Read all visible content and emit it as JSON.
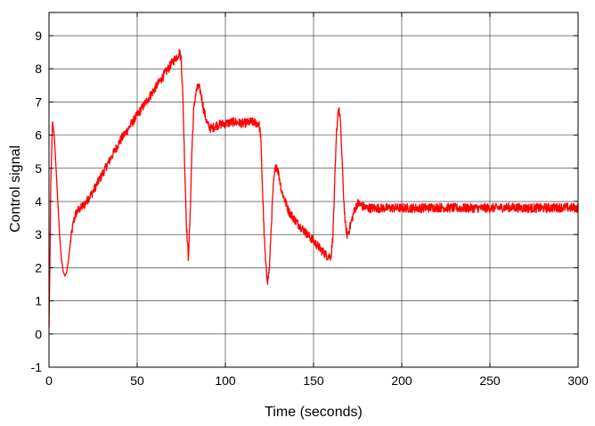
{
  "chart_data": {
    "type": "line",
    "title": "",
    "xlabel": "Time (seconds)",
    "ylabel": "Control signal",
    "xlim": [
      0,
      300
    ],
    "ylim": [
      -1,
      9.7
    ],
    "xticks": [
      0,
      50,
      100,
      150,
      200,
      250,
      300
    ],
    "yticks": [
      -1,
      0,
      1,
      2,
      3,
      4,
      5,
      6,
      7,
      8,
      9
    ],
    "xtick_labels": [
      "0",
      "50",
      "100",
      "150",
      "200",
      "250",
      "300"
    ],
    "ytick_labels": [
      "-1",
      "0",
      "1",
      "2",
      "3",
      "4",
      "5",
      "6",
      "7",
      "8",
      "9"
    ],
    "grid": true,
    "series": [
      {
        "color": "#ff0000",
        "x": [
          0,
          0.5,
          1,
          2,
          3,
          4,
          5,
          6,
          7,
          8,
          9,
          10,
          11,
          12,
          13,
          14,
          15,
          16,
          18,
          20,
          25,
          30,
          35,
          40,
          45,
          50,
          55,
          60,
          65,
          70,
          73,
          74,
          75,
          76,
          77,
          78,
          79,
          80,
          81,
          82,
          83,
          84,
          85,
          86,
          87,
          88,
          89,
          90,
          92,
          95,
          100,
          105,
          110,
          115,
          119,
          120,
          121,
          122,
          123,
          124,
          125,
          126,
          127,
          128,
          129,
          130,
          131,
          132,
          134,
          136,
          140,
          145,
          150,
          155,
          158,
          160,
          161,
          162,
          163,
          164,
          165,
          166,
          167,
          168,
          169,
          170,
          171,
          172,
          173,
          175,
          178,
          180,
          190,
          200,
          210,
          220,
          230,
          240,
          250,
          260,
          270,
          280,
          290,
          300
        ],
        "y": [
          0.2,
          2.0,
          4.5,
          6.4,
          6.0,
          5.0,
          4.0,
          3.0,
          2.3,
          1.9,
          1.75,
          1.85,
          2.2,
          2.7,
          3.1,
          3.4,
          3.6,
          3.7,
          3.8,
          3.9,
          4.3,
          4.8,
          5.3,
          5.8,
          6.2,
          6.6,
          7.0,
          7.4,
          7.8,
          8.2,
          8.4,
          8.5,
          8.3,
          7.0,
          5.0,
          3.2,
          2.3,
          3.5,
          5.5,
          6.7,
          7.2,
          7.4,
          7.45,
          7.3,
          7.0,
          6.7,
          6.5,
          6.3,
          6.2,
          6.3,
          6.35,
          6.4,
          6.35,
          6.4,
          6.35,
          6.0,
          4.5,
          3.0,
          2.0,
          1.6,
          2.0,
          3.2,
          4.3,
          4.9,
          5.1,
          4.9,
          4.6,
          4.3,
          4.0,
          3.7,
          3.4,
          3.1,
          2.8,
          2.5,
          2.35,
          2.35,
          3.0,
          4.5,
          6.0,
          6.8,
          6.6,
          5.5,
          4.2,
          3.3,
          3.0,
          3.1,
          3.3,
          3.5,
          3.7,
          3.95,
          3.85,
          3.8,
          3.8,
          3.8,
          3.8,
          3.82,
          3.8,
          3.8,
          3.8,
          3.82,
          3.8,
          3.8,
          3.82,
          3.8
        ]
      }
    ]
  }
}
